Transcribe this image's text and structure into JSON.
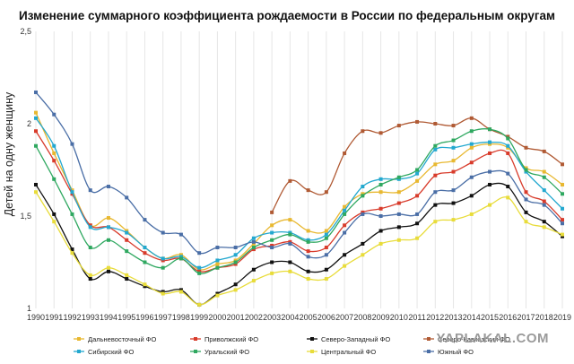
{
  "chart_data": {
    "type": "line",
    "title": "Изменение суммарного коэффициента рождаемости в России по федеральным округам",
    "xlabel": "",
    "ylabel": "Детей на одну женщину",
    "ylim": [
      1,
      2.5
    ],
    "y_ticks": [
      "1",
      "1,5",
      "2",
      "2,5"
    ],
    "grid": "vertical",
    "legend_position": "bottom",
    "x": [
      1990,
      1991,
      1992,
      1993,
      1994,
      1995,
      1996,
      1997,
      1998,
      1999,
      2000,
      2001,
      2002,
      2003,
      2004,
      2005,
      2006,
      2007,
      2008,
      2009,
      2010,
      2011,
      2012,
      2013,
      2014,
      2015,
      2016,
      2017,
      2018,
      2019
    ],
    "series": [
      {
        "name": "Дальневосточный ФО",
        "color": "#e8b830",
        "values": [
          2.06,
          1.84,
          1.64,
          1.45,
          1.49,
          1.42,
          1.33,
          1.27,
          1.29,
          1.21,
          1.24,
          1.26,
          1.35,
          1.45,
          1.48,
          1.42,
          1.42,
          1.55,
          1.62,
          1.63,
          1.63,
          1.69,
          1.78,
          1.8,
          1.87,
          1.89,
          1.87,
          1.76,
          1.74,
          1.67
        ]
      },
      {
        "name": "Приволжский ФО",
        "color": "#d83b2b",
        "values": [
          1.96,
          1.8,
          1.62,
          1.45,
          1.44,
          1.37,
          1.3,
          1.26,
          1.27,
          1.2,
          1.22,
          1.24,
          1.32,
          1.34,
          1.36,
          1.31,
          1.33,
          1.45,
          1.52,
          1.54,
          1.57,
          1.61,
          1.72,
          1.74,
          1.79,
          1.84,
          1.84,
          1.63,
          1.58,
          1.48
        ]
      },
      {
        "name": "Северо-Западный ФО",
        "color": "#111111",
        "values": [
          1.67,
          1.51,
          1.32,
          1.16,
          1.2,
          1.16,
          1.12,
          1.09,
          1.1,
          1.02,
          1.08,
          1.13,
          1.21,
          1.25,
          1.25,
          1.2,
          1.21,
          1.29,
          1.35,
          1.42,
          1.44,
          1.46,
          1.56,
          1.57,
          1.61,
          1.67,
          1.66,
          1.52,
          1.47,
          1.39
        ]
      },
      {
        "name": "Северо-Кавказский ФО",
        "color": "#b05a34",
        "values": [
          null,
          null,
          null,
          null,
          null,
          null,
          null,
          null,
          null,
          null,
          null,
          null,
          null,
          1.52,
          1.69,
          1.64,
          1.63,
          1.84,
          1.96,
          1.95,
          1.99,
          2.01,
          2.0,
          1.99,
          2.03,
          1.97,
          1.93,
          1.87,
          1.85,
          1.78
        ]
      },
      {
        "name": "Сибирский ФО",
        "color": "#23a8cf",
        "values": [
          2.03,
          1.88,
          1.63,
          1.44,
          1.44,
          1.41,
          1.33,
          1.27,
          1.28,
          1.22,
          1.26,
          1.29,
          1.38,
          1.41,
          1.41,
          1.37,
          1.4,
          1.53,
          1.66,
          1.7,
          1.7,
          1.73,
          1.86,
          1.87,
          1.89,
          1.9,
          1.88,
          1.74,
          1.64,
          1.54
        ]
      },
      {
        "name": "Уральский ФО",
        "color": "#2fa860",
        "values": [
          1.88,
          1.7,
          1.51,
          1.33,
          1.37,
          1.31,
          1.25,
          1.22,
          1.27,
          1.19,
          1.22,
          1.25,
          1.33,
          1.37,
          1.4,
          1.36,
          1.38,
          1.51,
          1.61,
          1.67,
          1.71,
          1.75,
          1.88,
          1.91,
          1.96,
          1.97,
          1.92,
          1.75,
          1.71,
          1.62
        ]
      },
      {
        "name": "Центральный ФО",
        "color": "#e8dc3a",
        "values": [
          1.63,
          1.47,
          1.3,
          1.18,
          1.22,
          1.18,
          1.13,
          1.08,
          1.09,
          1.02,
          1.07,
          1.1,
          1.15,
          1.19,
          1.2,
          1.16,
          1.16,
          1.23,
          1.29,
          1.35,
          1.37,
          1.38,
          1.47,
          1.48,
          1.51,
          1.56,
          1.6,
          1.47,
          1.44,
          1.4
        ]
      },
      {
        "name": "Южный ФО",
        "color": "#4a6ea6",
        "values": [
          2.17,
          2.05,
          1.89,
          1.64,
          1.66,
          1.6,
          1.48,
          1.41,
          1.4,
          1.3,
          1.33,
          1.33,
          1.36,
          1.33,
          1.35,
          1.28,
          1.29,
          1.41,
          1.51,
          1.5,
          1.51,
          1.51,
          1.63,
          1.64,
          1.71,
          1.74,
          1.73,
          1.59,
          1.56,
          1.46
        ]
      }
    ]
  },
  "watermark": "YAPLAKAL.COM"
}
